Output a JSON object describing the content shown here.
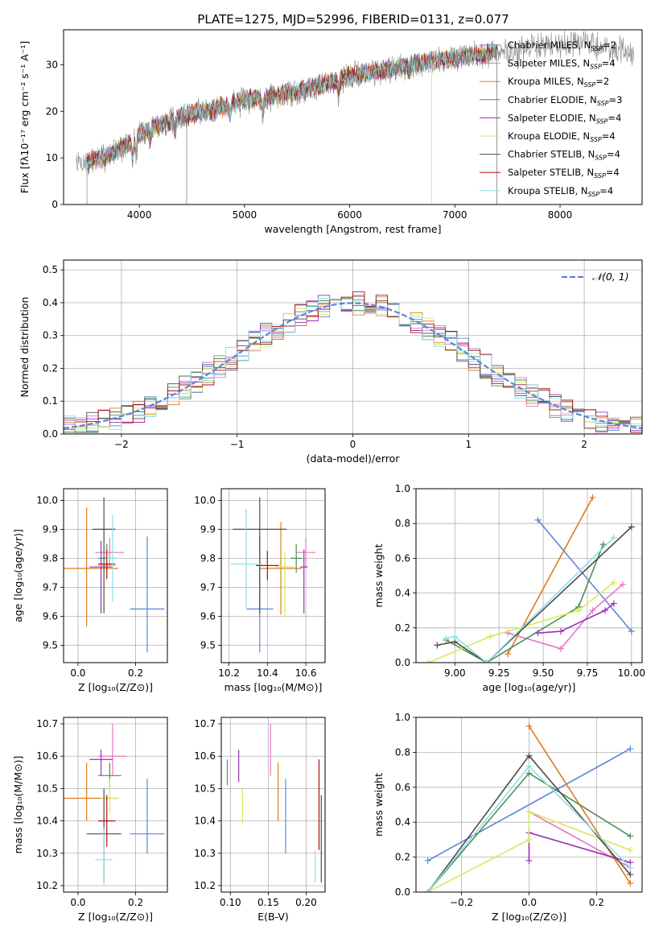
{
  "figure_title": "PLATE=1275, MJD=52996, FIBERID=0131, z=0.077",
  "models": [
    {
      "name": "Chabrier MILES",
      "nssp": "2",
      "color": "#5b86d9"
    },
    {
      "name": "Salpeter MILES",
      "nssp": "4",
      "color": "#e377c2"
    },
    {
      "name": "Kroupa MILES",
      "nssp": "2",
      "color": "#e07b1a"
    },
    {
      "name": "Chabrier ELODIE",
      "nssp": "3",
      "color": "#4f8f5a"
    },
    {
      "name": "Salpeter ELODIE",
      "nssp": "4",
      "color": "#9b30b5"
    },
    {
      "name": "Kroupa ELODIE",
      "nssp": "4",
      "color": "#d4ea5a"
    },
    {
      "name": "Chabrier STELIB",
      "nssp": "4",
      "color": "#4d4d4d"
    },
    {
      "name": "Salpeter STELIB",
      "nssp": "4",
      "color": "#b01010"
    },
    {
      "name": "Kroupa STELIB",
      "nssp": "4",
      "color": "#8fdfe6"
    }
  ],
  "chart_data": [
    {
      "id": "spectrum",
      "type": "line",
      "xlabel": "wavelength [Angstrom, rest frame]",
      "ylabel": "Flux [fλ10⁻¹⁷ erg cm⁻² s⁻¹ A⁻¹]",
      "xlim": [
        3280,
        8780
      ],
      "ylim": [
        0,
        37.5
      ],
      "xticks": [
        4000,
        5000,
        6000,
        7000,
        8000
      ],
      "yticks": [
        0,
        10,
        20,
        30
      ],
      "legend_position": "top-right",
      "continuum": [
        [
          3500,
          9.0
        ],
        [
          3700,
          10.5
        ],
        [
          3900,
          13.0
        ],
        [
          4000,
          15.0
        ],
        [
          4200,
          17.2
        ],
        [
          4500,
          19.5
        ],
        [
          4800,
          21.0
        ],
        [
          5000,
          22.3
        ],
        [
          5200,
          23.0
        ],
        [
          5500,
          24.2
        ],
        [
          5800,
          26.0
        ],
        [
          6000,
          27.6
        ],
        [
          6300,
          28.7
        ],
        [
          6600,
          30.0
        ],
        [
          6900,
          31.2
        ],
        [
          7200,
          32.0
        ],
        [
          7400,
          32.5
        ],
        [
          7600,
          33.2
        ],
        [
          7900,
          34.4
        ],
        [
          8200,
          34.8
        ],
        [
          8500,
          33.2
        ],
        [
          8700,
          32.5
        ]
      ],
      "observed_range": [
        3400,
        8700
      ],
      "model_range": [
        3500,
        7400
      ],
      "absorption_lines": [
        [
          3934,
          4
        ],
        [
          3969,
          4
        ],
        [
          4102,
          2
        ],
        [
          4340,
          3
        ],
        [
          4861,
          2
        ],
        [
          5175,
          4
        ],
        [
          5894,
          3
        ],
        [
          6563,
          1.5
        ],
        [
          7600,
          2
        ]
      ]
    },
    {
      "id": "residuals",
      "type": "step",
      "xlabel": "(data-model)/error",
      "ylabel": "Normed distribution",
      "xlim": [
        -2.5,
        2.5
      ],
      "ylim": [
        0,
        0.53
      ],
      "xticks": [
        -2,
        -1,
        0,
        1,
        2
      ],
      "yticks": [
        0.0,
        0.1,
        0.2,
        0.3,
        0.4,
        0.5
      ],
      "bin_width": 0.1,
      "gaussian_label": "𝒩(0, 1)",
      "gaussian_color": "#5b86d9",
      "legend_position": "top-right"
    },
    {
      "id": "age_vs_Z",
      "type": "errorbar",
      "xlabel": "Z [log₁₀(Z/Z⊙)]",
      "ylabel": "age  [log₁₀(age/yr)]",
      "xlim": [
        -0.05,
        0.31
      ],
      "ylim": [
        9.44,
        10.04
      ],
      "xticks": [
        0.0,
        0.2
      ],
      "yticks": [
        9.5,
        9.6,
        9.7,
        9.8,
        9.9,
        10.0
      ],
      "points": [
        {
          "x": 0.24,
          "xerr": 0.06,
          "y": 9.625,
          "yerr_lo": 0.15,
          "yerr_hi": 0.25
        },
        {
          "x": 0.11,
          "xerr": 0.05,
          "y": 9.82,
          "yerr_lo": 0.05,
          "yerr_hi": 0.05
        },
        {
          "x": 0.03,
          "xerr": 0.11,
          "y": 9.765,
          "yerr_lo": 0.2,
          "yerr_hi": 0.21
        },
        {
          "x": 0.1,
          "xerr": 0.03,
          "y": 9.8,
          "yerr_lo": 0.05,
          "yerr_hi": 0.05
        },
        {
          "x": 0.08,
          "xerr": 0.04,
          "y": 9.77,
          "yerr_lo": 0.16,
          "yerr_hi": 0.09
        },
        {
          "x": 0.1,
          "xerr": 0.03,
          "y": 9.775,
          "yerr_lo": 0.05,
          "yerr_hi": 0.05
        },
        {
          "x": 0.09,
          "xerr": 0.04,
          "y": 9.9,
          "yerr_lo": 0.29,
          "yerr_hi": 0.11
        },
        {
          "x": 0.1,
          "xerr": 0.03,
          "y": 9.78,
          "yerr_lo": 0.05,
          "yerr_hi": 0.05
        },
        {
          "x": 0.12,
          "xerr": 0.02,
          "y": 9.8,
          "yerr_lo": 0.15,
          "yerr_hi": 0.15
        }
      ]
    },
    {
      "id": "age_vs_mass",
      "type": "errorbar",
      "xlabel": "mass [log₁₀(M/M⊙)]",
      "ylabel": "",
      "xlim": [
        10.16,
        10.7
      ],
      "ylim": [
        9.44,
        10.04
      ],
      "xticks": [
        10.2,
        10.4,
        10.6
      ],
      "yticks": [
        9.5,
        9.6,
        9.7,
        9.8,
        9.9,
        10.0
      ],
      "points": [
        {
          "x": 10.36,
          "xerr": 0.07,
          "y": 9.625,
          "yerr_lo": 0.15,
          "yerr_hi": 0.25
        },
        {
          "x": 10.6,
          "xerr": 0.05,
          "y": 9.82,
          "yerr_lo": 0.05,
          "yerr_hi": 0.05
        },
        {
          "x": 10.47,
          "xerr": 0.11,
          "y": 9.765,
          "yerr_lo": 0.16,
          "yerr_hi": 0.16
        },
        {
          "x": 10.55,
          "xerr": 0.03,
          "y": 9.8,
          "yerr_lo": 0.05,
          "yerr_hi": 0.05
        },
        {
          "x": 10.59,
          "xerr": 0.02,
          "y": 9.77,
          "yerr_lo": 0.16,
          "yerr_hi": 0.06
        },
        {
          "x": 10.49,
          "xerr": 0.05,
          "y": 9.77,
          "yerr_lo": 0.17,
          "yerr_hi": 0.05
        },
        {
          "x": 10.36,
          "xerr": 0.14,
          "y": 9.9,
          "yerr_lo": 0.29,
          "yerr_hi": 0.11
        },
        {
          "x": 10.4,
          "xerr": 0.06,
          "y": 9.775,
          "yerr_lo": 0.05,
          "yerr_hi": 0.05
        },
        {
          "x": 10.29,
          "xerr": 0.08,
          "y": 9.78,
          "yerr_lo": 0.15,
          "yerr_hi": 0.19
        }
      ]
    },
    {
      "id": "mass_weight_vs_age",
      "type": "line",
      "xlabel": "age  [log₁₀(age/yr)]",
      "ylabel": "mass weight",
      "xlim": [
        8.78,
        10.06
      ],
      "ylim": [
        0,
        1.0
      ],
      "xticks": [
        9.0,
        9.25,
        9.5,
        9.75,
        10.0
      ],
      "yticks": [
        0.0,
        0.2,
        0.4,
        0.6,
        0.8,
        1.0
      ],
      "series": [
        {
          "model": 0,
          "x": [
            9.47,
            10.0
          ],
          "y": [
            0.82,
            0.18
          ]
        },
        {
          "model": 1,
          "x": [
            9.3,
            9.6,
            9.78,
            9.95
          ],
          "y": [
            0.17,
            0.08,
            0.3,
            0.45
          ]
        },
        {
          "model": 2,
          "x": [
            9.3,
            9.78
          ],
          "y": [
            0.05,
            0.95
          ]
        },
        {
          "model": 3,
          "x": [
            8.95,
            9.18,
            9.7,
            9.84
          ],
          "y": [
            0.13,
            0.0,
            0.32,
            0.68
          ]
        },
        {
          "model": 4,
          "x": [
            9.47,
            9.6,
            9.85,
            9.9
          ],
          "y": [
            0.17,
            0.18,
            0.3,
            0.34
          ]
        },
        {
          "model": 5,
          "x": [
            8.85,
            9.2,
            9.7,
            9.9
          ],
          "y": [
            0.0,
            0.15,
            0.3,
            0.46
          ]
        },
        {
          "model": 6,
          "x": [
            8.9,
            9.0,
            9.18,
            10.0
          ],
          "y": [
            0.1,
            0.12,
            0.0,
            0.78
          ]
        },
        {
          "model": 8,
          "x": [
            8.95,
            9.0,
            9.18,
            9.9
          ],
          "y": [
            0.14,
            0.15,
            0.0,
            0.72
          ]
        }
      ]
    },
    {
      "id": "mass_vs_Z",
      "type": "errorbar",
      "xlabel": "Z [log₁₀(Z/Z⊙)]",
      "ylabel": "mass [log₁₀(M/M⊙)]",
      "xlim": [
        -0.05,
        0.31
      ],
      "ylim": [
        10.18,
        10.72
      ],
      "xticks": [
        0.0,
        0.2
      ],
      "yticks": [
        10.2,
        10.3,
        10.4,
        10.5,
        10.6,
        10.7
      ],
      "points": [
        {
          "x": 0.24,
          "xerr": 0.06,
          "y": 10.36,
          "yerr_lo": 0.06,
          "yerr_hi": 0.17
        },
        {
          "x": 0.12,
          "xerr": 0.05,
          "y": 10.6,
          "yerr_lo": 0.06,
          "yerr_hi": 0.1
        },
        {
          "x": 0.03,
          "xerr": 0.11,
          "y": 10.47,
          "yerr_lo": 0.07,
          "yerr_hi": 0.11
        },
        {
          "x": 0.11,
          "xerr": 0.04,
          "y": 10.54,
          "yerr_lo": 0.04,
          "yerr_hi": 0.04
        },
        {
          "x": 0.08,
          "xerr": 0.04,
          "y": 10.59,
          "yerr_lo": 0.05,
          "yerr_hi": 0.03
        },
        {
          "x": 0.11,
          "xerr": 0.03,
          "y": 10.47,
          "yerr_lo": 0.05,
          "yerr_hi": 0.06
        },
        {
          "x": 0.09,
          "xerr": 0.06,
          "y": 10.36,
          "yerr_lo": 0.15,
          "yerr_hi": 0.14
        },
        {
          "x": 0.1,
          "xerr": 0.03,
          "y": 10.4,
          "yerr_lo": 0.08,
          "yerr_hi": 0.08
        },
        {
          "x": 0.09,
          "xerr": 0.03,
          "y": 10.28,
          "yerr_lo": 0.08,
          "yerr_hi": 0.1
        }
      ]
    },
    {
      "id": "mass_vs_ebv",
      "type": "errorbar",
      "xlabel": "E(B-V)",
      "ylabel": "",
      "xlim": [
        0.088,
        0.225
      ],
      "ylim": [
        10.18,
        10.72
      ],
      "xticks": [
        0.1,
        0.15,
        0.2
      ],
      "yticks": [
        10.2,
        10.3,
        10.4,
        10.5,
        10.6,
        10.7
      ],
      "points": [
        {
          "x": 0.173,
          "y": 10.36,
          "yerr_lo": 0.06,
          "yerr_hi": 0.17
        },
        {
          "x": 0.153,
          "y": 10.6,
          "yerr_lo": 0.06,
          "yerr_hi": 0.1
        },
        {
          "x": 0.163,
          "y": 10.47,
          "yerr_lo": 0.07,
          "yerr_hi": 0.11
        },
        {
          "x": 0.096,
          "y": 10.55,
          "yerr_lo": 0.04,
          "yerr_hi": 0.04
        },
        {
          "x": 0.111,
          "y": 10.57,
          "yerr_lo": 0.05,
          "yerr_hi": 0.05
        },
        {
          "x": 0.116,
          "y": 10.44,
          "yerr_lo": 0.05,
          "yerr_hi": 0.06
        },
        {
          "x": 0.22,
          "y": 10.34,
          "yerr_lo": 0.13,
          "yerr_hi": 0.14
        },
        {
          "x": 0.217,
          "y": 10.45,
          "yerr_lo": 0.14,
          "yerr_hi": 0.14
        },
        {
          "x": 0.212,
          "y": 10.26,
          "yerr_lo": 0.05,
          "yerr_hi": 0.05
        }
      ]
    },
    {
      "id": "mass_weight_vs_Z",
      "type": "line",
      "xlabel": "Z [log₁₀(Z/Z⊙)]",
      "ylabel": "mass weight",
      "xlim": [
        -0.335,
        0.335
      ],
      "ylim": [
        0,
        1.0
      ],
      "xticks": [
        -0.2,
        0.0,
        0.2
      ],
      "yticks": [
        0.0,
        0.2,
        0.4,
        0.6,
        0.8,
        1.0
      ],
      "series": [
        {
          "model": 0,
          "x": [
            -0.3,
            0.3
          ],
          "y": [
            0.18,
            0.82
          ]
        },
        {
          "model": 1,
          "x": [
            0.0,
            0.3
          ],
          "y": [
            0.46,
            0.14
          ]
        },
        {
          "model": 2,
          "x": [
            0.0,
            0.3
          ],
          "y": [
            0.95,
            0.05
          ]
        },
        {
          "model": 3,
          "x": [
            -0.3,
            0.0,
            0.3
          ],
          "y": [
            0.0,
            0.68,
            0.32
          ]
        },
        {
          "model": 4,
          "x": [
            0.0,
            0.0,
            0.3
          ],
          "y": [
            0.18,
            0.34,
            0.17
          ]
        },
        {
          "model": 5,
          "x": [
            -0.3,
            0.0,
            0.0,
            0.3
          ],
          "y": [
            0.0,
            0.3,
            0.46,
            0.24
          ]
        },
        {
          "model": 6,
          "x": [
            -0.3,
            0.0,
            0.3
          ],
          "y": [
            0.0,
            0.78,
            0.1
          ]
        },
        {
          "model": 8,
          "x": [
            -0.3,
            0.0,
            0.3
          ],
          "y": [
            0.0,
            0.72,
            0.14
          ]
        }
      ]
    }
  ]
}
